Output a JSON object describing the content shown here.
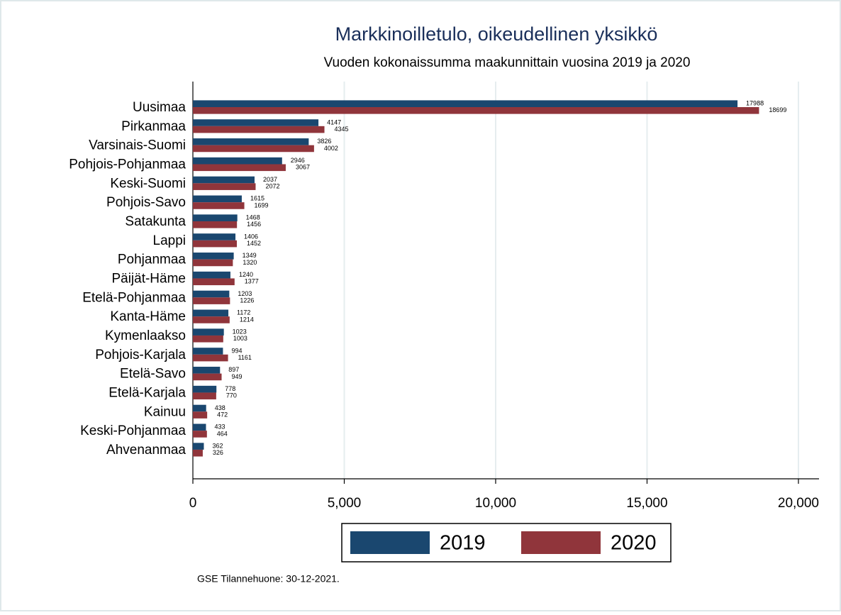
{
  "chart_data": {
    "type": "hbar",
    "title": "Markkinoilletulo, oikeudellinen yksikkö",
    "subtitle": "Vuoden kokonaissumma maakunnittain vuosina 2019 ja 2020",
    "note": "GSE Tilannehuone: 30-12-2021.",
    "categories": [
      "Uusimaa",
      "Pirkanmaa",
      "Varsinais-Suomi",
      "Pohjois-Pohjanmaa",
      "Keski-Suomi",
      "Pohjois-Savo",
      "Satakunta",
      "Lappi",
      "Pohjanmaa",
      "Päijät-Häme",
      "Etelä-Pohjanmaa",
      "Kanta-Häme",
      "Kymenlaakso",
      "Pohjois-Karjala",
      "Etelä-Savo",
      "Etelä-Karjala",
      "Kainuu",
      "Keski-Pohjanmaa",
      "Ahvenanmaa"
    ],
    "series": [
      {
        "name": "2019",
        "color": "#1a476f",
        "values": [
          17988,
          4147,
          3826,
          2946,
          2037,
          1615,
          1468,
          1406,
          1349,
          1240,
          1203,
          1172,
          1023,
          994,
          897,
          778,
          438,
          433,
          362
        ]
      },
      {
        "name": "2020",
        "color": "#90353b",
        "values": [
          18699,
          4345,
          4002,
          3067,
          2072,
          1699,
          1456,
          1452,
          1320,
          1377,
          1226,
          1214,
          1003,
          1161,
          949,
          770,
          472,
          464,
          326
        ]
      }
    ],
    "xlim": [
      0,
      20680
    ],
    "xticks": [
      0,
      {
        "value": 5000,
        "label": "5,000"
      },
      {
        "value": 10000,
        "label": "10,000"
      },
      {
        "value": 15000,
        "label": "15,000"
      },
      {
        "value": 20000,
        "label": "20,000"
      }
    ],
    "grid": true,
    "legend": "bottom"
  }
}
